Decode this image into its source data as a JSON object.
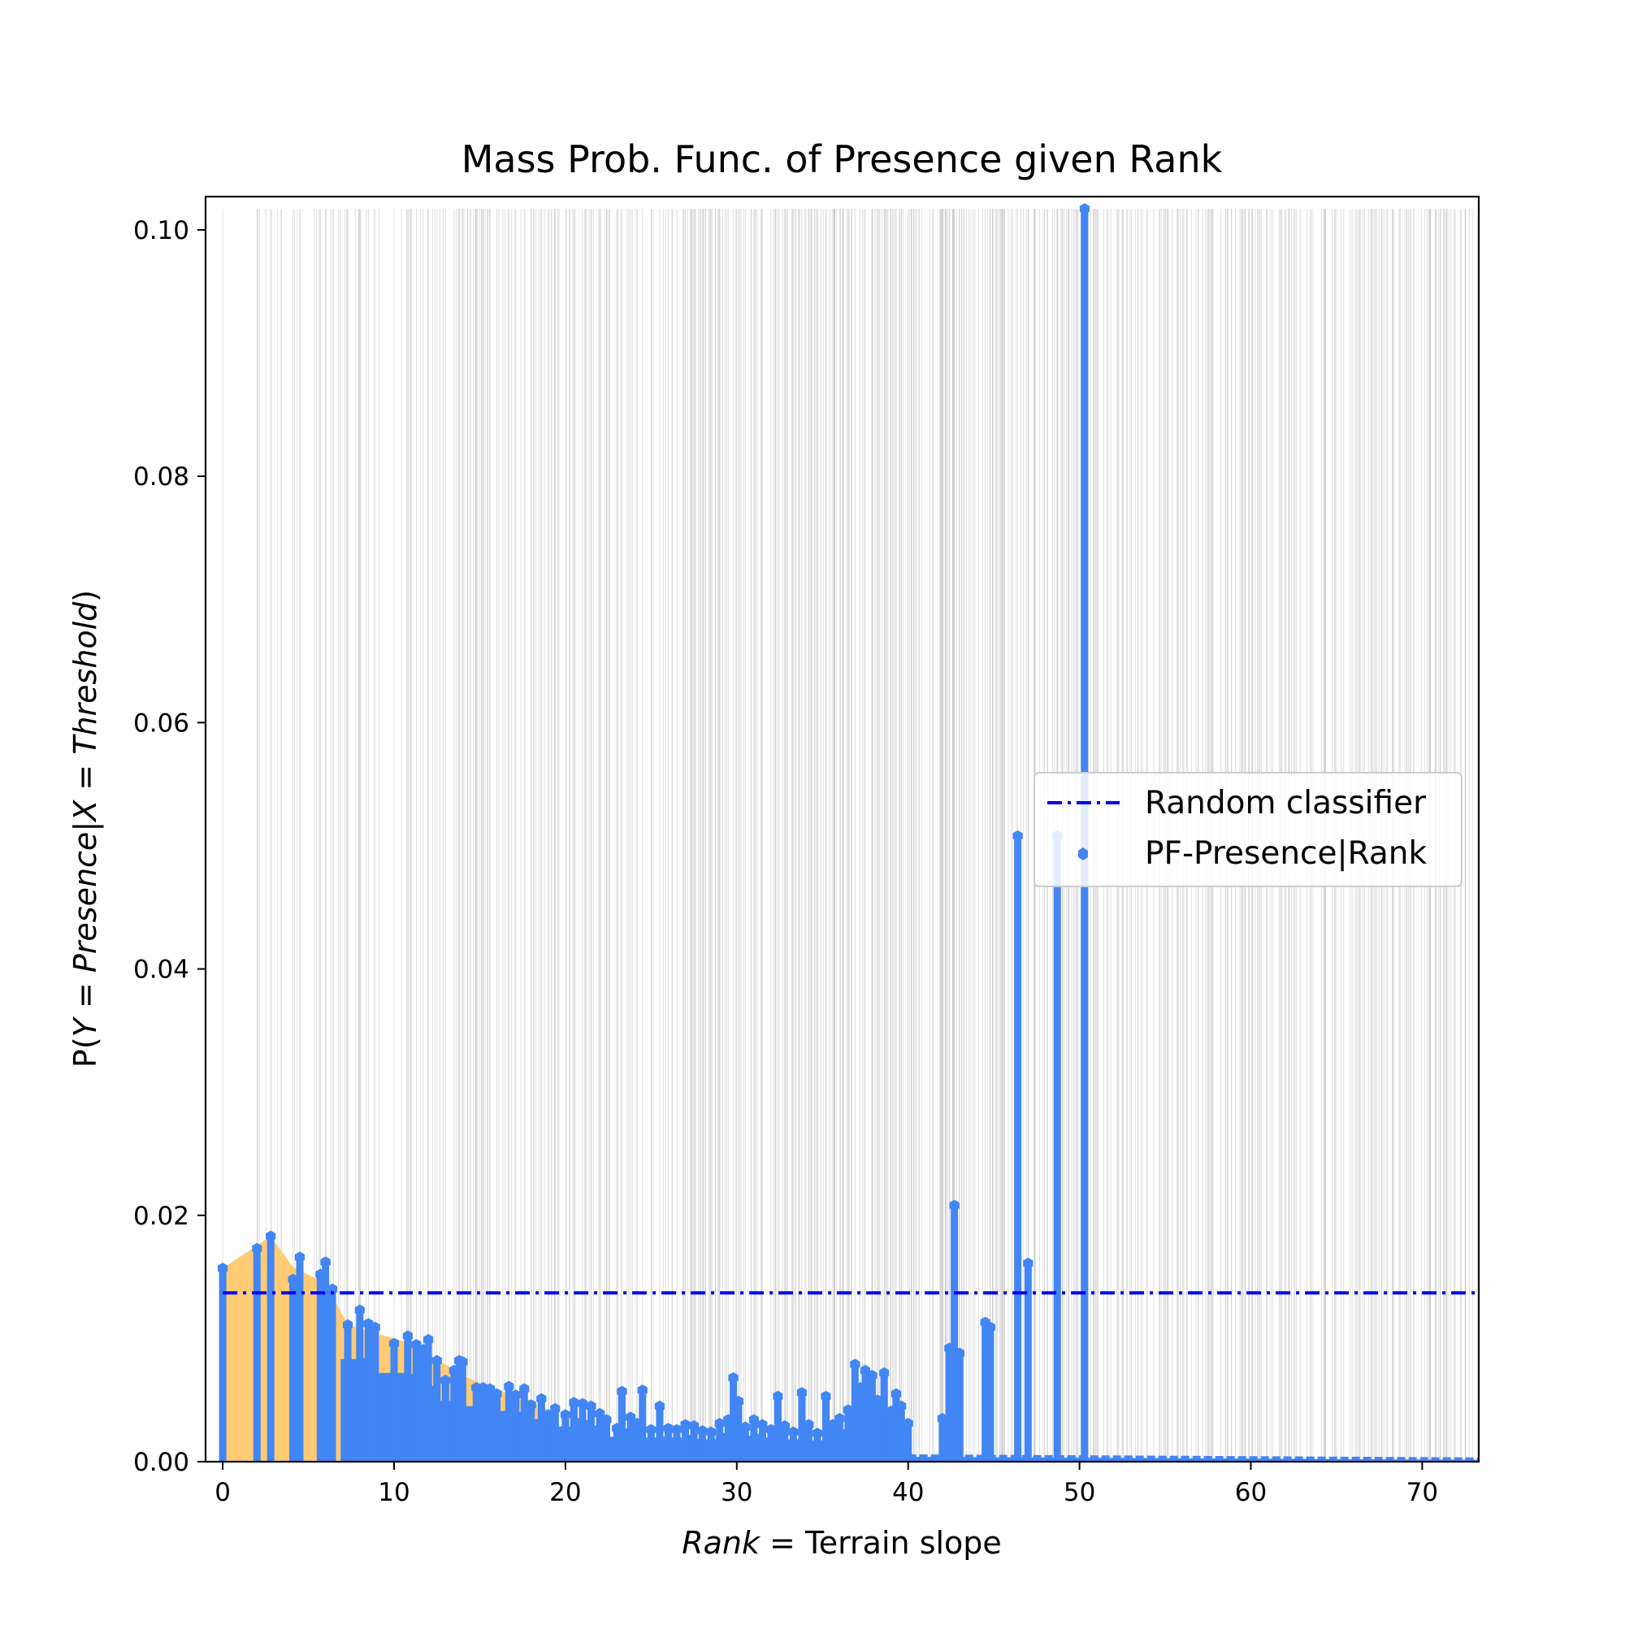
{
  "chart_data": {
    "type": "bar",
    "title": "Mass Prob. Func. of Presence given Rank",
    "xlabel_math": "Rank",
    "xlabel_eq": " = ",
    "xlabel_text": "Terrain slope",
    "ylabel_prefix": "P(",
    "ylabel_math": "Y = Presence|X = Threshold",
    "ylabel_suffix": ")",
    "xlim": [
      -1,
      73.3
    ],
    "ylim": [
      0,
      0.1027
    ],
    "xticks": [
      0,
      10,
      20,
      30,
      40,
      50,
      60,
      70
    ],
    "xtick_labels": [
      "0",
      "10",
      "20",
      "30",
      "40",
      "50",
      "60",
      "70"
    ],
    "yticks": [
      0.0,
      0.02,
      0.04,
      0.06,
      0.08,
      0.1
    ],
    "ytick_labels": [
      "0.00",
      "0.02",
      "0.04",
      "0.06",
      "0.08",
      "0.10"
    ],
    "grid": "vertical lines at every rank threshold",
    "legend_position": "center-right",
    "random_classifier": 0.0137,
    "series": [
      {
        "name": "PF-Presence|Rank",
        "color": "#4285f4",
        "x": [
          0.0,
          2.0,
          2.8,
          4.1,
          4.5,
          5.7,
          6.0,
          6.4,
          7.3,
          8.0,
          8.5,
          8.9,
          10.0,
          10.8,
          11.3,
          11.7,
          12.0,
          12.5,
          13.0,
          13.5,
          13.8,
          14.0,
          14.8,
          15.2,
          15.6,
          16.0,
          16.7,
          17.1,
          17.6,
          18.0,
          18.6,
          19.0,
          19.4,
          20.0,
          20.5,
          21.0,
          21.5,
          22.0,
          22.4,
          23.0,
          23.3,
          23.8,
          24.2,
          24.5,
          25.0,
          25.5,
          26.0,
          26.5,
          27.0,
          27.5,
          28.0,
          28.5,
          29.0,
          29.5,
          29.8,
          30.1,
          30.5,
          31.0,
          31.5,
          32.0,
          32.4,
          32.8,
          33.3,
          33.8,
          34.2,
          34.7,
          35.2,
          35.6,
          36.0,
          36.5,
          36.9,
          37.2,
          37.5,
          37.9,
          38.2,
          38.6,
          39.0,
          39.3,
          39.6,
          40.0,
          42.0,
          42.4,
          42.7,
          43.0,
          44.5,
          44.8,
          46.4,
          47.0,
          48.7,
          50.3
        ],
        "y": [
          0.0157,
          0.0173,
          0.0183,
          0.0148,
          0.0166,
          0.0152,
          0.0162,
          0.014,
          0.0111,
          0.0123,
          0.0112,
          0.0109,
          0.0096,
          0.0102,
          0.0095,
          0.0091,
          0.0099,
          0.0082,
          0.0066,
          0.0074,
          0.0082,
          0.0081,
          0.006,
          0.006,
          0.0059,
          0.0055,
          0.0061,
          0.0054,
          0.0059,
          0.0046,
          0.0051,
          0.0038,
          0.0043,
          0.0038,
          0.0048,
          0.0047,
          0.0045,
          0.0039,
          0.0034,
          0.0027,
          0.0057,
          0.0036,
          0.0031,
          0.0058,
          0.0026,
          0.0045,
          0.0027,
          0.0026,
          0.003,
          0.0029,
          0.0025,
          0.0024,
          0.0031,
          0.0034,
          0.0068,
          0.0049,
          0.0028,
          0.0034,
          0.003,
          0.0026,
          0.0053,
          0.0029,
          0.0024,
          0.0056,
          0.003,
          0.0023,
          0.0053,
          0.003,
          0.0035,
          0.0042,
          0.0079,
          0.006,
          0.0074,
          0.007,
          0.005,
          0.0072,
          0.0041,
          0.0055,
          0.0045,
          0.0031,
          0.0035,
          0.0092,
          0.0208,
          0.0088,
          0.0113,
          0.0109,
          0.0508,
          0.0161,
          0.0508,
          0.1017
        ]
      }
    ],
    "tail": {
      "from_x": 40.0,
      "to_x": 73.3,
      "y_start": 0.0004,
      "y_end": 0.00015
    },
    "legend": {
      "items": [
        {
          "label": "Random classifier",
          "color": "#0000ee",
          "style": "dashdot"
        },
        {
          "label": "PF-Presence|Rank",
          "color": "#4285f4",
          "style": "marker"
        }
      ]
    },
    "colors": {
      "bars": "#4285f4",
      "fill": "#ffc86e",
      "random_line": "#0000ee",
      "grid": "#b8b8b8"
    }
  }
}
